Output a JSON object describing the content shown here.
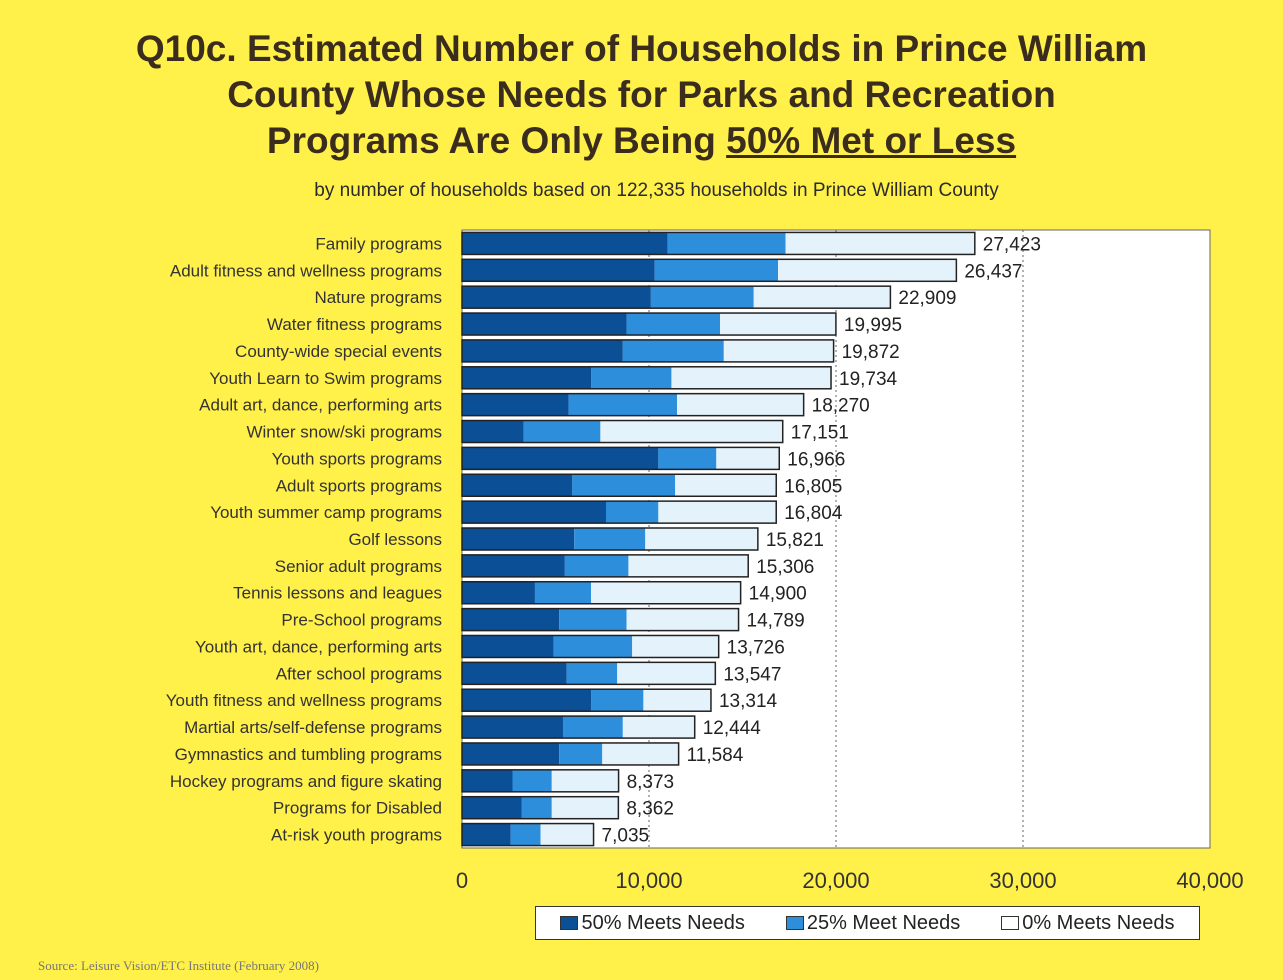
{
  "title_line1": "Q10c. Estimated Number of Households in Prince William",
  "title_line2": "County Whose Needs for Parks and Recreation",
  "title_line3_prefix": "Programs Are Only Being ",
  "title_line3_underlined": "50% Met or Less",
  "subtitle": "by number of households based on 122,335 households in Prince William County",
  "source": "Source:  Leisure Vision/ETC Institute (February 2008)",
  "colors": {
    "background": "#fff04a",
    "series_50": "#0b4f96",
    "series_25": "#2d8fdc",
    "series_0": "#e4f2fc",
    "plot_bg": "#ffffff"
  },
  "chart_data": {
    "type": "bar",
    "orientation": "horizontal",
    "stacked": true,
    "title": "Q10c. Estimated Number of Households in Prince William County Whose Needs for Parks and Recreation Programs Are Only Being 50% Met or Less",
    "subtitle": "by number of households based on 122,335 households in Prince William County",
    "categories": [
      "Family programs",
      "Adult fitness and wellness programs",
      "Nature programs",
      "Water fitness programs",
      "County-wide special events",
      "Youth Learn to Swim programs",
      "Adult art, dance, performing arts",
      "Winter snow/ski programs",
      "Youth sports programs",
      "Adult sports programs",
      "Youth summer camp programs",
      "Golf lessons",
      "Senior adult programs",
      "Tennis lessons and leagues",
      "Pre-School programs",
      "Youth art, dance, performing arts",
      "After school programs",
      "Youth fitness and wellness programs",
      "Martial arts/self-defense programs",
      "Gymnastics and tumbling programs",
      "Hockey programs and figure skating",
      "Programs for Disabled",
      "At-risk youth programs"
    ],
    "series": [
      {
        "name": "50% Meets Needs",
        "color": "#0b4f96",
        "values": [
          11000,
          10300,
          10100,
          8800,
          8600,
          6900,
          5700,
          3300,
          10500,
          5900,
          7700,
          6000,
          5500,
          3900,
          5200,
          4900,
          5600,
          6900,
          5400,
          5200,
          2700,
          3200,
          2600
        ]
      },
      {
        "name": "25% Meet Needs",
        "color": "#2d8fdc",
        "values": [
          6300,
          6600,
          5500,
          5000,
          5400,
          4300,
          5800,
          4100,
          3100,
          5500,
          2800,
          3800,
          3400,
          3000,
          3600,
          4200,
          2700,
          2800,
          3200,
          2300,
          2100,
          1600,
          1600
        ]
      },
      {
        "name": "0% Meets Needs",
        "color": "#e4f2fc",
        "values": [
          10123,
          9537,
          7309,
          6195,
          5872,
          8534,
          6770,
          9751,
          3366,
          5405,
          6304,
          6021,
          6406,
          8000,
          5989,
          4626,
          5247,
          3614,
          3844,
          4084,
          3573,
          3562,
          2835
        ]
      }
    ],
    "totals": [
      27423,
      26437,
      22909,
      19995,
      19872,
      19734,
      18270,
      17151,
      16966,
      16805,
      16804,
      15821,
      15306,
      14900,
      14789,
      13726,
      13547,
      13314,
      12444,
      11584,
      8373,
      8362,
      7035
    ],
    "total_labels": [
      "27,423",
      "26,437",
      "22,909",
      "19,995",
      "19,872",
      "19,734",
      "18,270",
      "17,151",
      "16,966",
      "16,805",
      "16,804",
      "15,821",
      "15,306",
      "14,900",
      "14,789",
      "13,726",
      "13,547",
      "13,314",
      "12,444",
      "11,584",
      "8,373",
      "8,362",
      "7,035"
    ],
    "xlim": [
      0,
      40000
    ],
    "xticks": [
      0,
      10000,
      20000,
      30000,
      40000
    ],
    "xtick_labels": [
      "0",
      "10,000",
      "20,000",
      "30,000",
      "40,000"
    ],
    "grid": "vertical dotted",
    "legend_position": "bottom-right",
    "xlabel": "",
    "ylabel": ""
  }
}
